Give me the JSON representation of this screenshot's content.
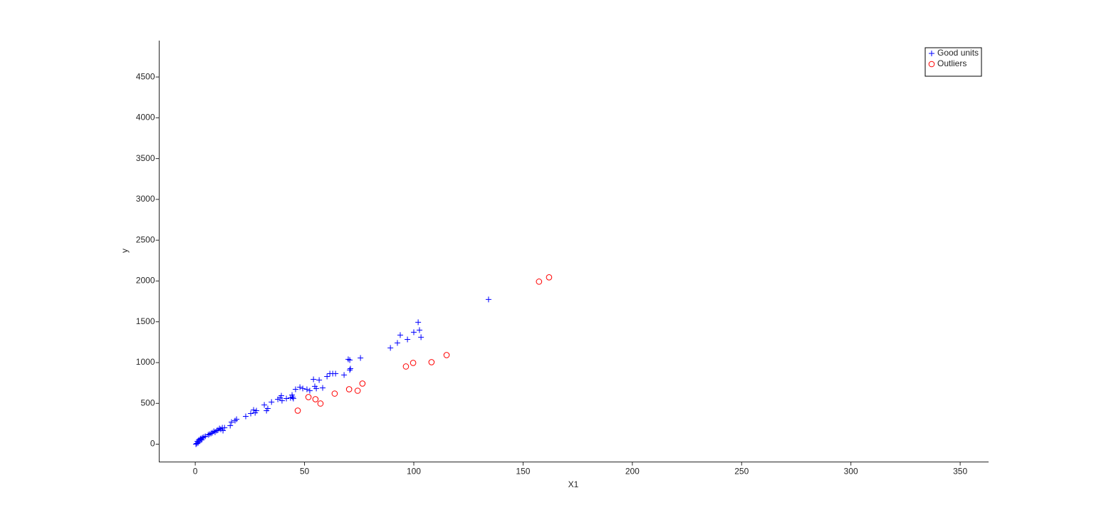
{
  "chart_data": {
    "type": "scatter",
    "x_label": "X1",
    "y_label": "y",
    "xlim": [
      -16.5,
      363
    ],
    "ylim": [
      -218,
      4946
    ],
    "xticks": [
      0,
      50,
      100,
      150,
      200,
      250,
      300,
      350
    ],
    "yticks": [
      0,
      500,
      1000,
      1500,
      2000,
      2500,
      3000,
      3500,
      4000,
      4500
    ],
    "grid": false,
    "legend": "northeast",
    "series": [
      {
        "name": "Good units",
        "color": "#0000ff",
        "marker": "plus",
        "x": [
          0.3,
          0.7,
          1.0,
          1.3,
          1.6,
          2.0,
          2.3,
          2.6,
          2.9,
          3.3,
          3.9,
          4.6,
          5.9,
          6.5,
          7.2,
          7.8,
          8.5,
          9.1,
          9.8,
          10.4,
          11.1,
          11.7,
          12.4,
          12.7,
          13.4,
          16.0,
          16.6,
          18.2,
          18.9,
          23.1,
          25.4,
          26.7,
          27.4,
          28.0,
          31.6,
          32.6,
          33.2,
          34.9,
          37.8,
          38.8,
          39.4,
          39.7,
          41.7,
          43.6,
          44.3,
          44.6,
          44.9,
          45.9,
          47.9,
          49.2,
          51.1,
          52.4,
          54.1,
          54.7,
          55.4,
          56.7,
          58.3,
          60.3,
          61.6,
          62.9,
          64.2,
          68.1,
          70.0,
          70.7,
          70.7,
          71.0,
          75.6,
          89.3,
          92.5,
          93.8,
          97.1,
          100.0,
          102.0,
          102.6,
          103.3,
          134.2
        ],
        "values": [
          0,
          9,
          35,
          17,
          52,
          35,
          61,
          70,
          52,
          79,
          87,
          96,
          114,
          122,
          131,
          140,
          157,
          149,
          166,
          175,
          192,
          183,
          201,
          166,
          201,
          227,
          271,
          288,
          306,
          341,
          376,
          419,
          384,
          411,
          481,
          411,
          437,
          516,
          550,
          568,
          594,
          533,
          559,
          568,
          603,
          577,
          559,
          673,
          699,
          682,
          673,
          655,
          795,
          708,
          682,
          786,
          690,
          830,
          865,
          865,
          865,
          848,
          1040,
          1031,
          909,
          926,
          1057,
          1180,
          1241,
          1337,
          1284,
          1372,
          1494,
          1398,
          1311,
          1774
        ]
      },
      {
        "name": "Outliers",
        "color": "#ff0000",
        "marker": "circle",
        "x": [
          46.9,
          51.8,
          55.0,
          57.3,
          63.8,
          70.4,
          74.3,
          76.5,
          96.4,
          99.7,
          108.1,
          115.0,
          157.3,
          161.9
        ],
        "values": [
          411,
          577,
          551,
          498,
          620,
          673,
          655,
          743,
          952,
          996,
          1005,
          1092,
          1992,
          2045
        ]
      }
    ]
  }
}
